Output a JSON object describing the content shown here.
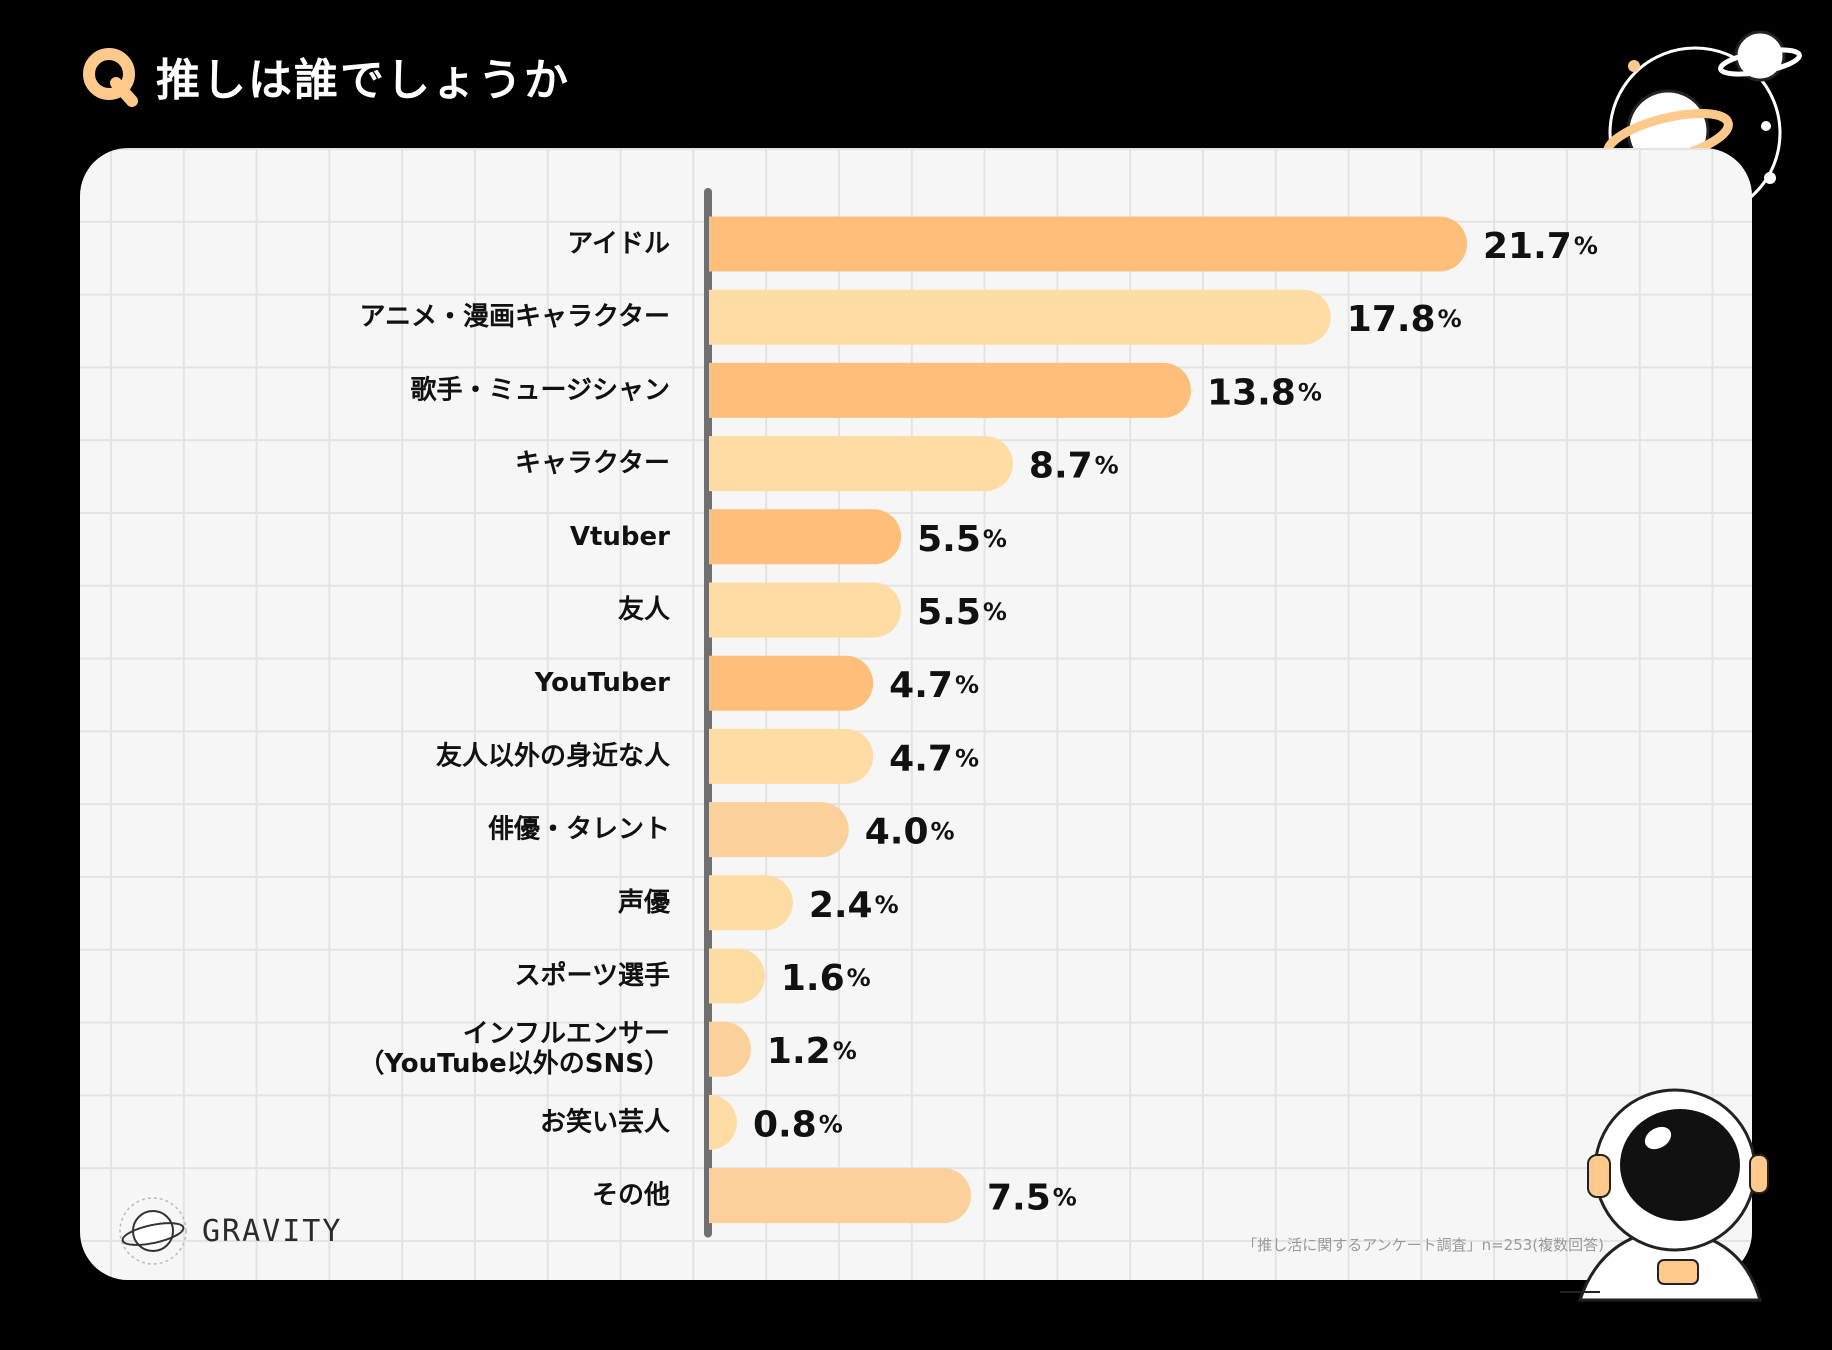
{
  "title": "推しは誰でしょうか",
  "q_mark": "Q",
  "brand": "GRAVITY",
  "source_note": "「推し活に関するアンケート調査」n=253(複数回答)",
  "colors": {
    "bar_strong": "#ffbf7a",
    "bar_light": "#ffdca4",
    "bar_peach": "#fcd09a",
    "accent": "#ffc98c",
    "axis": "#6f6f6f",
    "text": "#111111"
  },
  "chart_data": {
    "type": "bar",
    "orientation": "horizontal",
    "title": "推しは誰でしょうか",
    "unit": "%",
    "categories": [
      [
        "アイドル"
      ],
      [
        "アニメ・漫画キャラクター"
      ],
      [
        "歌手・ミュージシャン"
      ],
      [
        "キャラクター"
      ],
      [
        "Vtuber"
      ],
      [
        "友人"
      ],
      [
        "YouTuber"
      ],
      [
        "友人以外の身近な人"
      ],
      [
        "俳優・タレント"
      ],
      [
        "声優"
      ],
      [
        "スポーツ選手"
      ],
      [
        "インフルエンサー",
        "（YouTube以外のSNS）"
      ],
      [
        "お笑い芸人"
      ],
      [
        "その他"
      ]
    ],
    "values": [
      21.7,
      17.8,
      13.8,
      8.7,
      5.5,
      5.5,
      4.7,
      4.7,
      4.0,
      2.4,
      1.6,
      1.2,
      0.8,
      7.5
    ],
    "value_labels": [
      "21.7",
      "17.8",
      "13.8",
      "8.7",
      "5.5",
      "5.5",
      "4.7",
      "4.7",
      "4.0",
      "2.4",
      "1.6",
      "1.2",
      "0.8",
      "7.5"
    ],
    "bar_colors": [
      "strong",
      "light",
      "strong",
      "light",
      "strong",
      "light",
      "strong",
      "light",
      "peach",
      "light",
      "light",
      "peach",
      "light",
      "peach"
    ],
    "xlim": [
      0,
      21.7
    ]
  }
}
